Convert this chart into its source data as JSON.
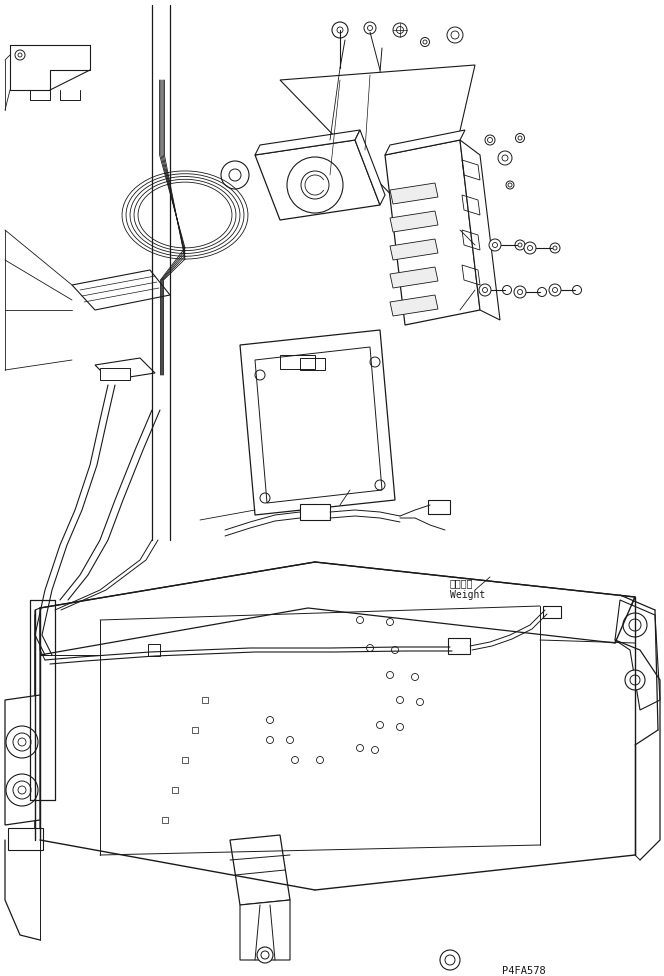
{
  "bg_color": "#ffffff",
  "line_color": "#1a1a1a",
  "part_number": "P4FA578",
  "weight_ja": "ウェイト",
  "weight_en": "Weight",
  "fig_width": 6.64,
  "fig_height": 9.76,
  "dpi": 100
}
